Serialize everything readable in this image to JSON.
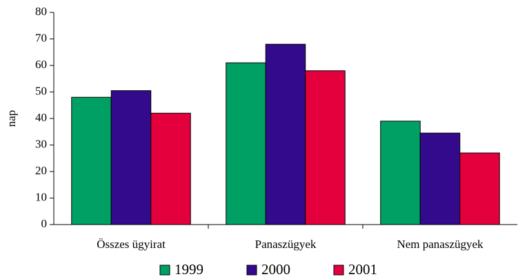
{
  "chart_data": {
    "type": "bar",
    "y_label": "nap",
    "categories": [
      "Összes ügyirat",
      "Panaszügyek",
      "Nem panaszügyek"
    ],
    "series": [
      {
        "name": "1999",
        "color": "#00a064",
        "values": [
          48,
          61,
          39
        ]
      },
      {
        "name": "2000",
        "color": "#330a8c",
        "values": [
          50.5,
          68,
          34.5
        ]
      },
      {
        "name": "2001",
        "color": "#e4003c",
        "values": [
          42,
          58,
          27
        ]
      }
    ],
    "ylim": [
      0,
      80
    ],
    "yticks": [
      0,
      10,
      20,
      30,
      40,
      50,
      60,
      70,
      80
    ],
    "grid": false
  }
}
